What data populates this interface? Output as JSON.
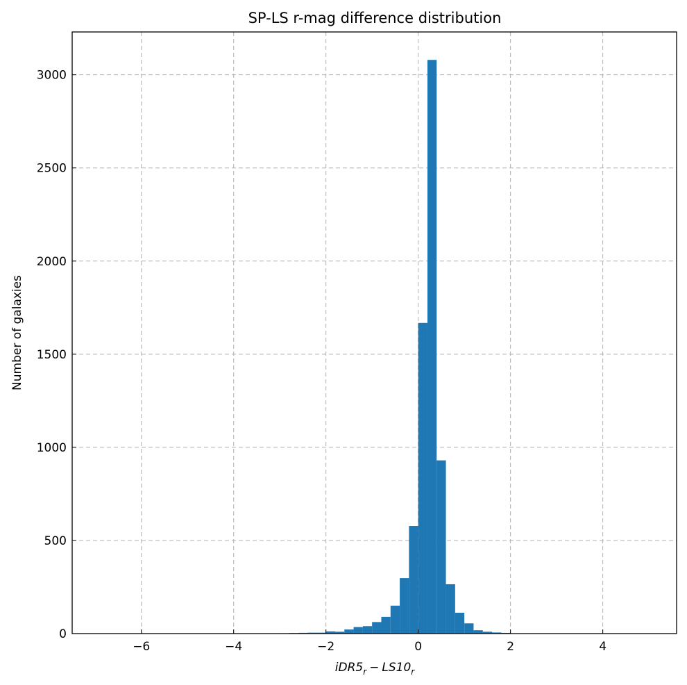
{
  "chart_data": {
    "type": "bar",
    "title": "SP-LS r-mag difference distribution",
    "xlabel": {
      "base1": "iDR5",
      "sub1": "r",
      "minus": "−",
      "base2": "LS10",
      "sub2": "r"
    },
    "ylabel": "Number of galaxies",
    "xlim": [
      -7.5,
      5.6
    ],
    "ylim": [
      0,
      3230
    ],
    "xticks": [
      -6,
      -4,
      -2,
      0,
      2,
      4
    ],
    "xtick_labels": [
      "−6",
      "−4",
      "−2",
      "0",
      "2",
      "4"
    ],
    "yticks": [
      0,
      500,
      1000,
      1500,
      2000,
      2500,
      3000
    ],
    "ytick_labels": [
      "0",
      "500",
      "1000",
      "1500",
      "2000",
      "2500",
      "3000"
    ],
    "grid": true,
    "color": "#1f77b4",
    "bin_width": 0.2,
    "bins": [
      {
        "x0": -3.0,
        "count": 2
      },
      {
        "x0": -2.8,
        "count": 3
      },
      {
        "x0": -2.6,
        "count": 4
      },
      {
        "x0": -2.4,
        "count": 5
      },
      {
        "x0": -2.2,
        "count": 5
      },
      {
        "x0": -2.0,
        "count": 12
      },
      {
        "x0": -1.8,
        "count": 10
      },
      {
        "x0": -1.6,
        "count": 22
      },
      {
        "x0": -1.4,
        "count": 35
      },
      {
        "x0": -1.2,
        "count": 40
      },
      {
        "x0": -1.0,
        "count": 62
      },
      {
        "x0": -0.8,
        "count": 90
      },
      {
        "x0": -0.6,
        "count": 150
      },
      {
        "x0": -0.4,
        "count": 298
      },
      {
        "x0": -0.2,
        "count": 578
      },
      {
        "x0": 0.0,
        "count": 1668
      },
      {
        "x0": 0.2,
        "count": 3080
      },
      {
        "x0": 0.4,
        "count": 930
      },
      {
        "x0": 0.6,
        "count": 265
      },
      {
        "x0": 0.8,
        "count": 112
      },
      {
        "x0": 1.0,
        "count": 55
      },
      {
        "x0": 1.2,
        "count": 18
      },
      {
        "x0": 1.4,
        "count": 10
      },
      {
        "x0": 1.6,
        "count": 6
      },
      {
        "x0": 1.8,
        "count": 4
      },
      {
        "x0": 2.0,
        "count": 1
      }
    ]
  }
}
